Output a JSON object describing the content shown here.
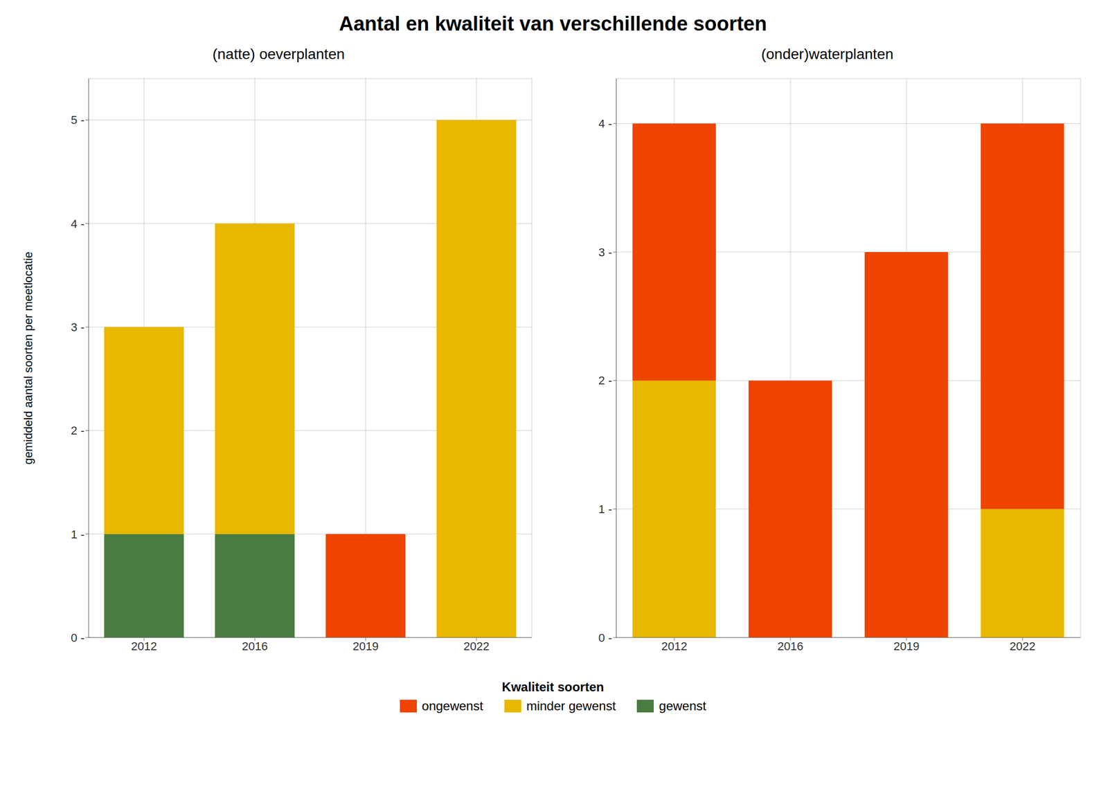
{
  "chart_data": [
    {
      "type": "bar",
      "title": "Aantal en kwaliteit van verschillende soorten",
      "subtitle": "(natte) oeverplanten",
      "y_label": "gemiddeld aantal soorten per meetlocatie",
      "categories": [
        "2012",
        "2016",
        "2019",
        "2022"
      ],
      "series": [
        {
          "name": "gewenst",
          "color": "#4A7C3F",
          "values": [
            1,
            1,
            0,
            0
          ]
        },
        {
          "name": "minder gewenst",
          "color": "#E8B800",
          "values": [
            2,
            3,
            0,
            5
          ]
        },
        {
          "name": "ongewenst",
          "color": "#EE4400",
          "values": [
            0,
            0,
            1,
            0
          ]
        }
      ],
      "ylim": [
        0,
        5.4
      ],
      "yticks": [
        {
          "value": 0,
          "label": "0 -"
        },
        {
          "value": 1,
          "label": "1 -"
        },
        {
          "value": 2,
          "label": "2 -"
        },
        {
          "value": 3,
          "label": "3 -"
        },
        {
          "value": 4,
          "label": "4 -"
        },
        {
          "value": 5,
          "label": "5 -"
        }
      ],
      "stacked": true,
      "grid": true,
      "legend": "bottom",
      "legend_title": "Kwaliteit soorten"
    },
    {
      "type": "bar",
      "subtitle": "(onder)waterplanten",
      "categories": [
        "2012",
        "2016",
        "2019",
        "2022"
      ],
      "series": [
        {
          "name": "gewenst",
          "color": "#4A7C3F",
          "values": [
            0,
            0,
            0,
            0
          ]
        },
        {
          "name": "minder gewenst",
          "color": "#E8B800",
          "values": [
            2,
            0,
            0,
            1
          ]
        },
        {
          "name": "ongewenst",
          "color": "#EE4400",
          "values": [
            2,
            2,
            3,
            3
          ]
        }
      ],
      "ylim": [
        0,
        4.35
      ],
      "yticks": [
        {
          "value": 0,
          "label": "0 -"
        },
        {
          "value": 1,
          "label": "1 -"
        },
        {
          "value": 2,
          "label": "2 -"
        },
        {
          "value": 3,
          "label": "3 -"
        },
        {
          "value": 4,
          "label": "4 -"
        }
      ],
      "stacked": true,
      "grid": true
    }
  ]
}
